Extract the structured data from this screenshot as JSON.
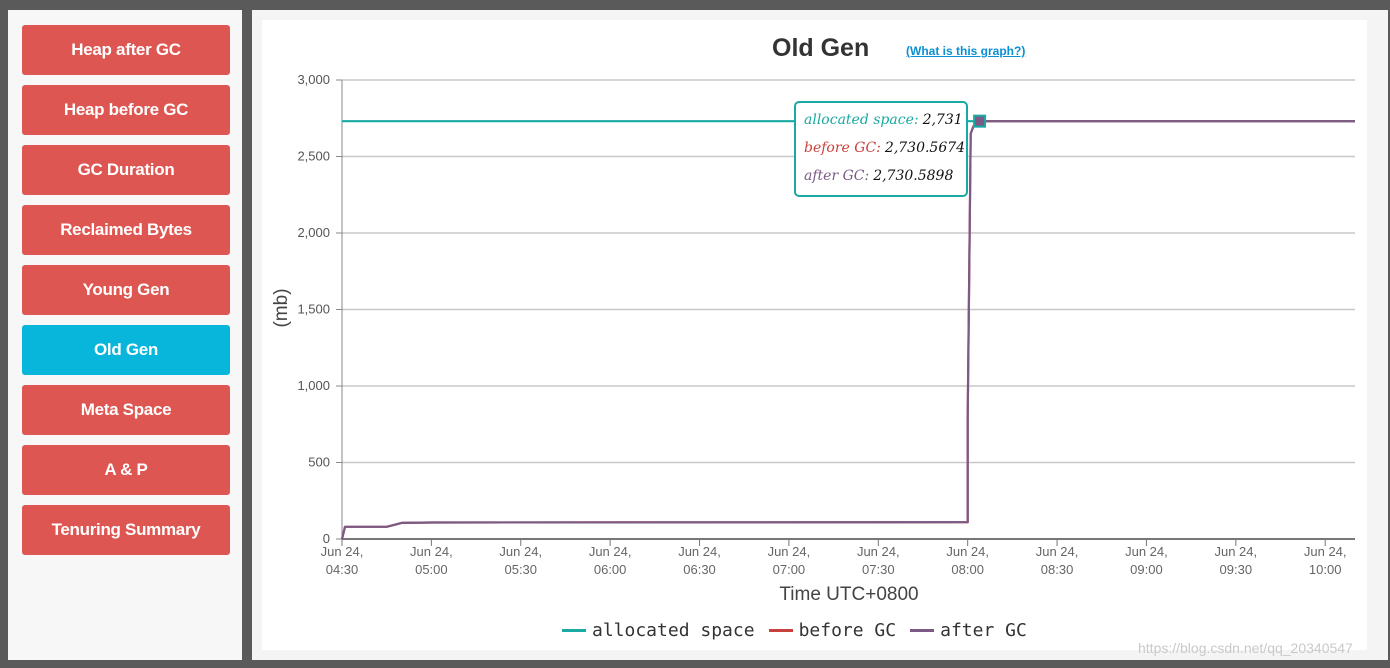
{
  "sidebar": {
    "items": [
      {
        "label": "Heap after GC",
        "active": false
      },
      {
        "label": "Heap before GC",
        "active": false
      },
      {
        "label": "GC Duration",
        "active": false
      },
      {
        "label": "Reclaimed Bytes",
        "active": false
      },
      {
        "label": "Young Gen",
        "active": false
      },
      {
        "label": "Old Gen",
        "active": true
      },
      {
        "label": "Meta Space",
        "active": false
      },
      {
        "label": "A & P",
        "active": false
      },
      {
        "label": "Tenuring Summary",
        "active": false
      }
    ],
    "colors": {
      "default": "#de5651",
      "active": "#09b6db"
    }
  },
  "header": {
    "title": "Old Gen",
    "help_link": "(What is this graph?)"
  },
  "tooltip": {
    "rows": [
      {
        "label": "allocated space:",
        "value": "2,731",
        "color": "#1aa9a3"
      },
      {
        "label": "before GC:",
        "value": "2,730.5674",
        "color": "#c9413c"
      },
      {
        "label": "after GC:",
        "value": "2,730.5898",
        "color": "#7b5b86"
      }
    ]
  },
  "chart_data": {
    "type": "line",
    "title": "Old Gen",
    "xlabel": "Time UTC+0800",
    "ylabel": "(mb)",
    "ylim": [
      0,
      3000
    ],
    "yticks": [
      0,
      500,
      1000,
      1500,
      2000,
      2500,
      3000
    ],
    "ytick_labels": [
      "0",
      "500",
      "1,000",
      "1,500",
      "2,000",
      "2,500",
      "3,000"
    ],
    "xlim": [
      "04:30",
      "10:10"
    ],
    "xticks": [
      "04:30",
      "05:00",
      "05:30",
      "06:00",
      "06:30",
      "07:00",
      "07:30",
      "08:00",
      "08:30",
      "09:00",
      "09:30",
      "10:00"
    ],
    "xtick_labels": [
      [
        "Jun 24,",
        "04:30"
      ],
      [
        "Jun 24,",
        "05:00"
      ],
      [
        "Jun 24,",
        "05:30"
      ],
      [
        "Jun 24,",
        "06:00"
      ],
      [
        "Jun 24,",
        "06:30"
      ],
      [
        "Jun 24,",
        "07:00"
      ],
      [
        "Jun 24,",
        "07:30"
      ],
      [
        "Jun 24,",
        "08:00"
      ],
      [
        "Jun 24,",
        "08:30"
      ],
      [
        "Jun 24,",
        "09:00"
      ],
      [
        "Jun 24,",
        "09:30"
      ],
      [
        "Jun 24,",
        "10:00"
      ]
    ],
    "grid": true,
    "legend_position": "bottom",
    "series": [
      {
        "name": "allocated space",
        "color": "#1aa9a3",
        "points": [
          [
            "04:30",
            2731
          ],
          [
            "10:10",
            2731
          ]
        ]
      },
      {
        "name": "before GC",
        "color": "#c9413c",
        "points": [
          [
            "04:30",
            0
          ],
          [
            "04:31",
            80
          ],
          [
            "04:45",
            80
          ],
          [
            "04:50",
            105
          ],
          [
            "05:00",
            108
          ],
          [
            "08:00",
            110
          ],
          [
            "08:00",
            800
          ],
          [
            "08:01",
            2650
          ],
          [
            "08:02",
            2700
          ],
          [
            "08:04",
            2730.5674
          ],
          [
            "10:10",
            2730.5674
          ]
        ]
      },
      {
        "name": "after GC",
        "color": "#7b5b86",
        "points": [
          [
            "04:30",
            0
          ],
          [
            "04:31",
            80
          ],
          [
            "04:45",
            80
          ],
          [
            "04:50",
            105
          ],
          [
            "05:00",
            108
          ],
          [
            "08:00",
            110
          ],
          [
            "08:00",
            800
          ],
          [
            "08:01",
            2650
          ],
          [
            "08:02",
            2700
          ],
          [
            "08:04",
            2730.5898
          ],
          [
            "10:10",
            2730.5898
          ]
        ]
      }
    ],
    "highlight": {
      "x": "08:04",
      "y": 2731
    }
  },
  "watermark": "https://blog.csdn.net/qq_20340547"
}
